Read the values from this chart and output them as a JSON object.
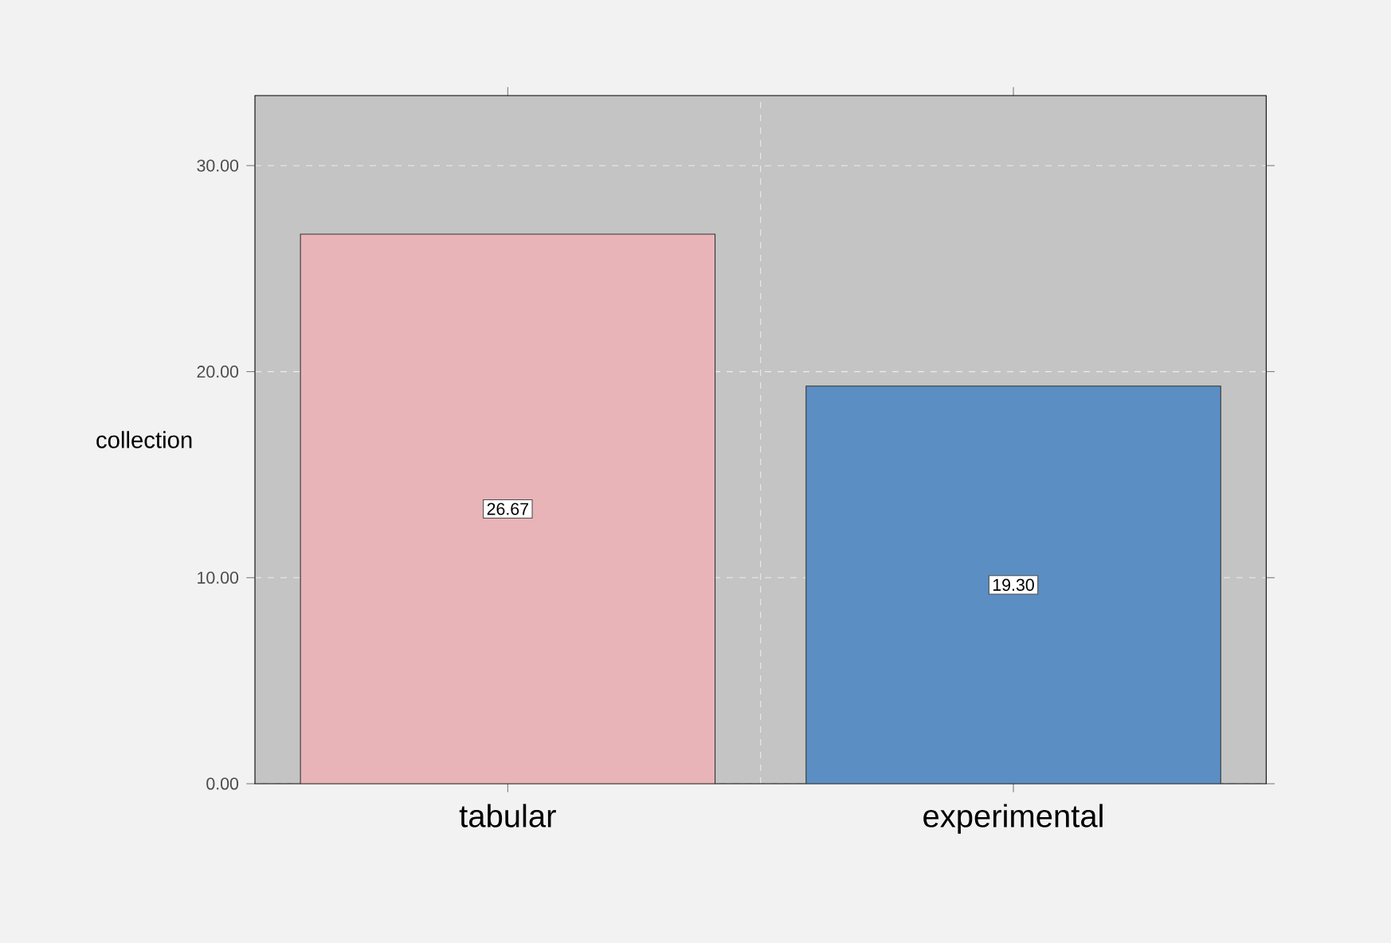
{
  "chart_data": {
    "type": "bar",
    "ylabel": "collection",
    "categories": [
      "tabular",
      "experimental"
    ],
    "values": [
      26.67,
      19.3
    ],
    "value_labels": [
      "26.67",
      "19.30"
    ],
    "colors": [
      "#e8b4b8",
      "#5b8fc4"
    ],
    "ylim": [
      0,
      33.4
    ],
    "yticks": [
      {
        "value": 0,
        "label": "0.00"
      },
      {
        "value": 10,
        "label": "10.00"
      },
      {
        "value": 20,
        "label": "20.00"
      },
      {
        "value": 30,
        "label": "30.00"
      }
    ],
    "grid": true
  }
}
